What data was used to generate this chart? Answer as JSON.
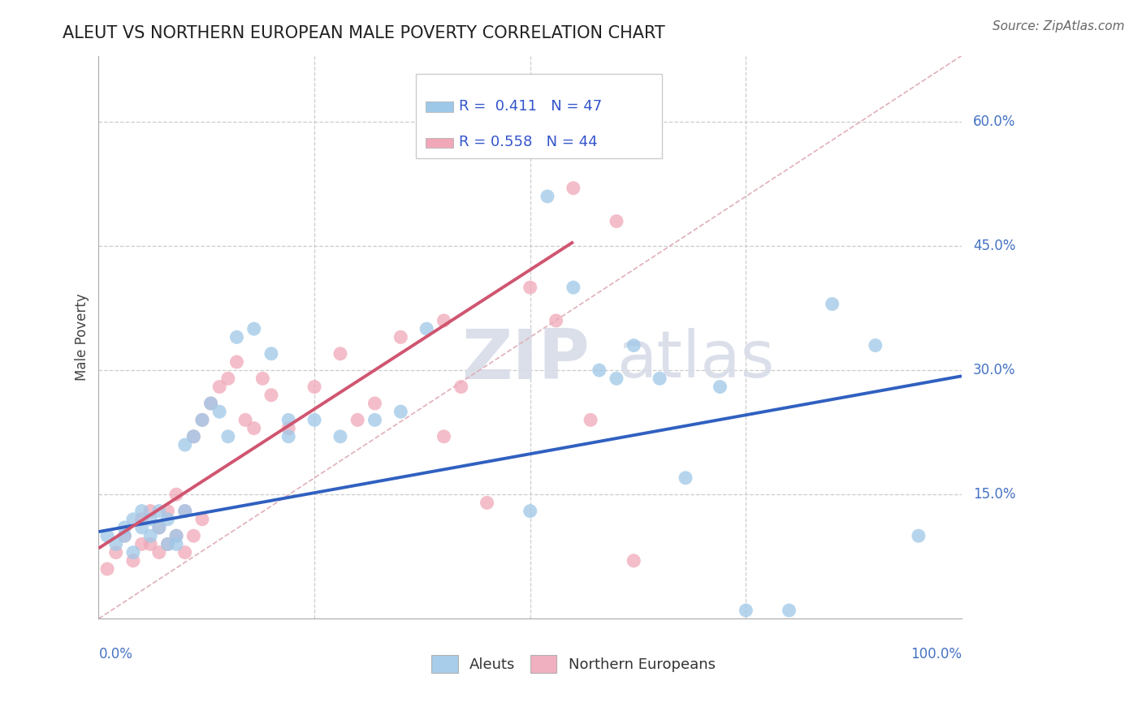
{
  "title": "ALEUT VS NORTHERN EUROPEAN MALE POVERTY CORRELATION CHART",
  "source": "Source: ZipAtlas.com",
  "ylabel": "Male Poverty",
  "xlim": [
    0,
    1.0
  ],
  "ylim": [
    0,
    0.68
  ],
  "ytick_vals": [
    0.15,
    0.3,
    0.45,
    0.6
  ],
  "ytick_labels": [
    "15.0%",
    "30.0%",
    "45.0%",
    "60.0%"
  ],
  "aleut_R": "0.411",
  "aleut_N": "47",
  "northern_R": "0.558",
  "northern_N": "44",
  "aleut_color": "#9ec8e8",
  "northern_color": "#f0a8b8",
  "aleut_line_color": "#3060c0",
  "northern_line_color": "#d05570",
  "diagonal_color": "#e0b0b8",
  "aleut_x": [
    0.01,
    0.02,
    0.03,
    0.03,
    0.04,
    0.04,
    0.05,
    0.05,
    0.06,
    0.06,
    0.07,
    0.07,
    0.08,
    0.08,
    0.09,
    0.09,
    0.1,
    0.1,
    0.11,
    0.12,
    0.13,
    0.14,
    0.15,
    0.16,
    0.18,
    0.2,
    0.22,
    0.22,
    0.25,
    0.28,
    0.32,
    0.35,
    0.38,
    0.5,
    0.52,
    0.55,
    0.58,
    0.6,
    0.62,
    0.65,
    0.68,
    0.72,
    0.75,
    0.8,
    0.85,
    0.9,
    0.95
  ],
  "aleut_y": [
    0.1,
    0.09,
    0.11,
    0.1,
    0.12,
    0.08,
    0.13,
    0.11,
    0.12,
    0.1,
    0.11,
    0.13,
    0.09,
    0.12,
    0.1,
    0.09,
    0.21,
    0.13,
    0.22,
    0.24,
    0.26,
    0.25,
    0.22,
    0.34,
    0.35,
    0.32,
    0.24,
    0.22,
    0.24,
    0.22,
    0.24,
    0.25,
    0.35,
    0.13,
    0.51,
    0.4,
    0.3,
    0.29,
    0.33,
    0.29,
    0.17,
    0.28,
    0.01,
    0.01,
    0.38,
    0.33,
    0.1
  ],
  "northern_x": [
    0.01,
    0.02,
    0.03,
    0.04,
    0.05,
    0.05,
    0.06,
    0.06,
    0.07,
    0.07,
    0.08,
    0.08,
    0.09,
    0.09,
    0.1,
    0.1,
    0.11,
    0.11,
    0.12,
    0.12,
    0.13,
    0.14,
    0.15,
    0.16,
    0.17,
    0.18,
    0.19,
    0.2,
    0.22,
    0.25,
    0.28,
    0.3,
    0.32,
    0.35,
    0.4,
    0.42,
    0.45,
    0.5,
    0.53,
    0.55,
    0.57,
    0.6,
    0.62,
    0.4
  ],
  "northern_y": [
    0.06,
    0.08,
    0.1,
    0.07,
    0.09,
    0.12,
    0.13,
    0.09,
    0.11,
    0.08,
    0.13,
    0.09,
    0.15,
    0.1,
    0.13,
    0.08,
    0.22,
    0.1,
    0.24,
    0.12,
    0.26,
    0.28,
    0.29,
    0.31,
    0.24,
    0.23,
    0.29,
    0.27,
    0.23,
    0.28,
    0.32,
    0.24,
    0.26,
    0.34,
    0.36,
    0.28,
    0.14,
    0.4,
    0.36,
    0.52,
    0.24,
    0.48,
    0.07,
    0.22
  ],
  "aleut_line_x": [
    0.0,
    1.0
  ],
  "aleut_line_y": [
    0.105,
    0.293
  ],
  "northern_line_x": [
    0.0,
    0.55
  ],
  "northern_line_y": [
    0.085,
    0.455
  ]
}
